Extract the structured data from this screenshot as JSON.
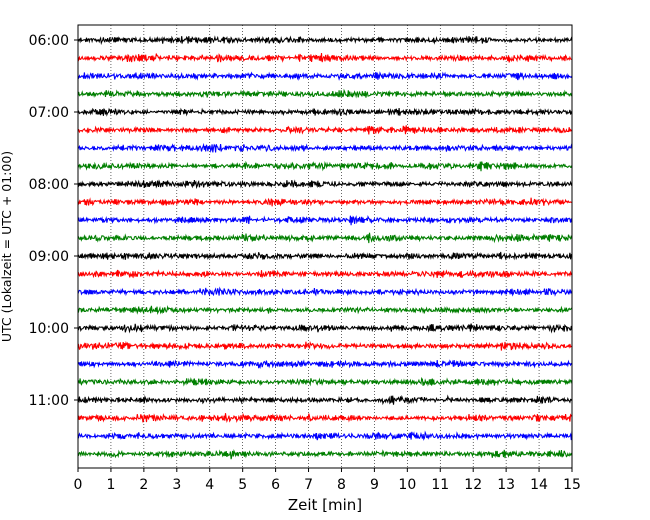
{
  "chart_data": {
    "type": "line",
    "title": "",
    "xlabel": "Zeit  [min]",
    "ylabel": "UTC (Lokalzeit = UTC + 01:00)",
    "xlim": [
      0,
      15
    ],
    "x_ticks": [
      "0",
      "1",
      "2",
      "3",
      "4",
      "5",
      "6",
      "7",
      "8",
      "9",
      "10",
      "11",
      "12",
      "13",
      "14",
      "15"
    ],
    "y_ticks": [
      "06:00",
      "07:00",
      "08:00",
      "09:00",
      "10:00",
      "11:00"
    ],
    "grid": "vertical dotted lines at each minute",
    "trace_interval_min": 15,
    "start_time": "06:00",
    "trace_colors": [
      "#000000",
      "#ff0000",
      "#0000ff",
      "#007f00"
    ],
    "traces": [
      {
        "start": "06:00"
      },
      {
        "start": "06:15"
      },
      {
        "start": "06:30"
      },
      {
        "start": "06:45"
      },
      {
        "start": "07:00"
      },
      {
        "start": "07:15"
      },
      {
        "start": "07:30"
      },
      {
        "start": "07:45"
      },
      {
        "start": "08:00"
      },
      {
        "start": "08:15"
      },
      {
        "start": "08:30"
      },
      {
        "start": "08:45"
      },
      {
        "start": "09:00"
      },
      {
        "start": "09:15"
      },
      {
        "start": "09:30"
      },
      {
        "start": "09:45"
      },
      {
        "start": "10:00"
      },
      {
        "start": "10:15"
      },
      {
        "start": "10:30"
      },
      {
        "start": "10:45"
      },
      {
        "start": "11:00"
      },
      {
        "start": "11:15"
      },
      {
        "start": "11:30"
      },
      {
        "start": "11:45"
      }
    ]
  }
}
